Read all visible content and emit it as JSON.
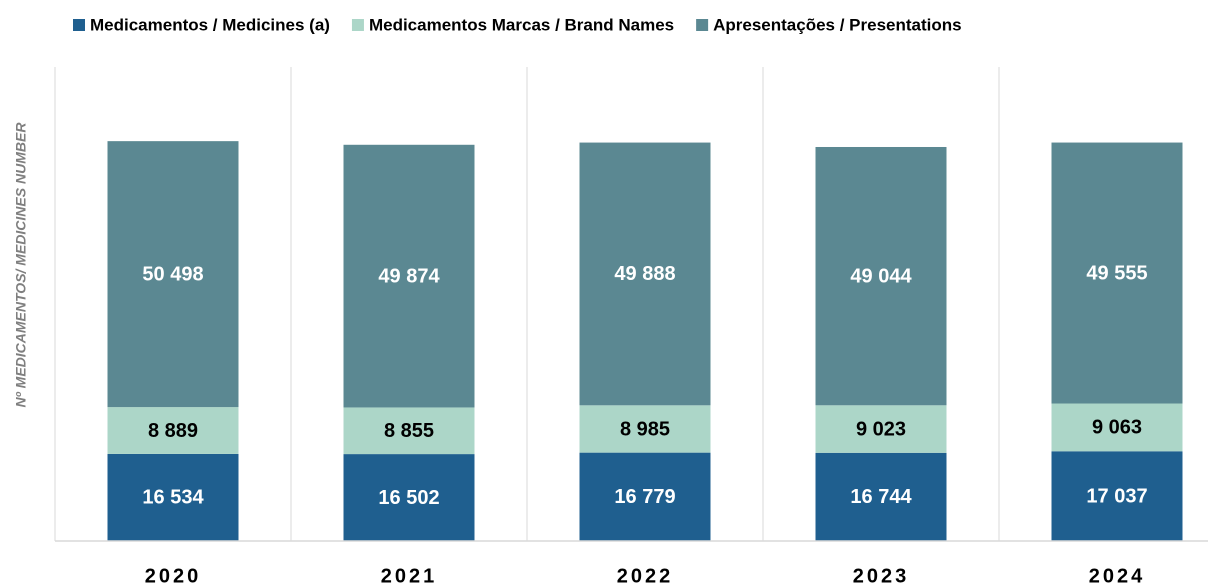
{
  "chart_data": {
    "type": "stacked_bar",
    "ylabel": "Nº MEDICAMENTOS/ MEDICINES NUMBER",
    "categories": [
      "2020",
      "2021",
      "2022",
      "2023",
      "2024"
    ],
    "series": [
      {
        "name": "Medicamentos / Medicines (a)",
        "color": "#1f5f8f",
        "label_color": "#ffffff",
        "values": [
          16534,
          16502,
          16779,
          16744,
          17037
        ],
        "value_labels": [
          "16 534",
          "16 502",
          "16 779",
          "16 744",
          "17 037"
        ]
      },
      {
        "name": "Medicamentos Marcas / Brand Names",
        "color": "#acd6c8",
        "label_color": "#000000",
        "values": [
          8889,
          8855,
          8985,
          9023,
          9063
        ],
        "value_labels": [
          "8 889",
          "8 855",
          "8 985",
          "9 023",
          "9 063"
        ]
      },
      {
        "name": "Apresentações / Presentations",
        "color": "#5b8892",
        "label_color": "#ffffff",
        "values": [
          50498,
          49874,
          49888,
          49044,
          49555
        ],
        "value_labels": [
          "50 498",
          "49 874",
          "49 888",
          "49 044",
          "49 555"
        ]
      }
    ],
    "ylim": [
      0,
      90000
    ],
    "legend": "top"
  }
}
